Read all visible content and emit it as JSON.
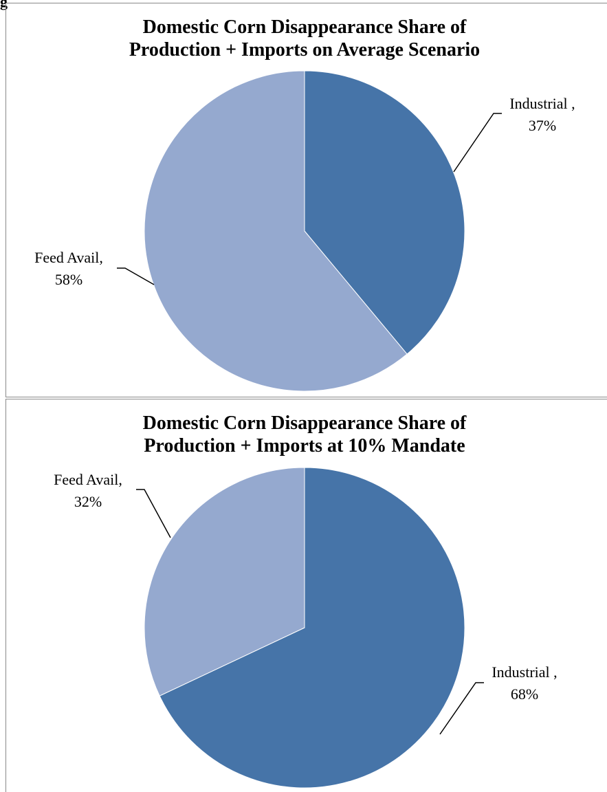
{
  "heading": "g",
  "chart_data": [
    {
      "type": "pie",
      "title": [
        "Domestic Corn Disappearance Share of",
        "Production + Imports on Average Scenario"
      ],
      "categories": [
        "Industrial ,",
        "Feed Avail,"
      ],
      "values": [
        37,
        58
      ],
      "value_labels": [
        "37%",
        "58%"
      ],
      "colors": [
        "#4674a8",
        "#95a9cf"
      ]
    },
    {
      "type": "pie",
      "title": [
        "Domestic Corn Disappearance Share of",
        "Production + Imports at 10% Mandate"
      ],
      "categories": [
        "Industrial ,",
        "Feed Avail,"
      ],
      "values": [
        68,
        32
      ],
      "value_labels": [
        "68%",
        "32%"
      ],
      "colors": [
        "#4674a8",
        "#95a9cf"
      ]
    }
  ]
}
